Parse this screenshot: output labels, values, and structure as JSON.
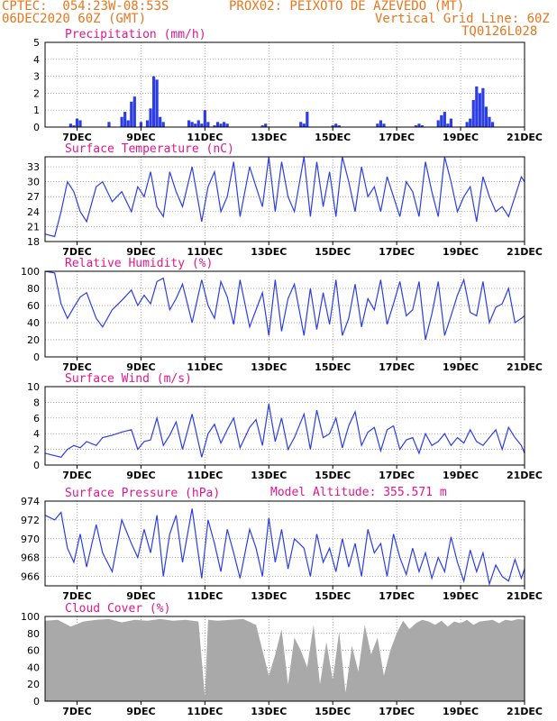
{
  "header": {
    "line1_left": "CPTEC:  054:23W-08:53S",
    "line1_right": "PROX02: PEIXOTO DE AZEVEDO (MT)",
    "line2_left": "06DEC2020 60Z (GMT)",
    "line2_right": "Vertical Grid Line: 60Z",
    "line3_right": "TQ0126L028"
  },
  "x_tick_labels": [
    "7DEC",
    "9DEC",
    "11DEC",
    "13DEC",
    "15DEC",
    "17DEC",
    "19DEC",
    "21DEC"
  ],
  "colors": {
    "line": "#2b3de6",
    "bar": "#2b3de6",
    "cloud": "#a9a9a9",
    "title": "#e0188c",
    "header": "#e8761c"
  },
  "model_altitude": "Model Altitude: 355.571 m",
  "chart_data": [
    {
      "type": "bar",
      "title": "Precipitation (mm/h)",
      "ylim": [
        0,
        5
      ],
      "yticks": [
        "0",
        "1",
        "2",
        "3",
        "4",
        "5"
      ],
      "x_unit": "days since 6DEC 12Z",
      "x": [
        0.8,
        0.9,
        1.0,
        1.1,
        2.0,
        2.4,
        2.5,
        2.6,
        2.7,
        2.8,
        3.0,
        3.2,
        3.3,
        3.4,
        3.5,
        3.6,
        3.7,
        4.5,
        4.6,
        4.7,
        4.8,
        4.9,
        5.0,
        5.1,
        5.3,
        5.4,
        5.5,
        5.6,
        5.7,
        6.8,
        6.9,
        8.0,
        8.1,
        8.2,
        9.0,
        9.1,
        9.2,
        10.4,
        10.5,
        10.6,
        11.6,
        11.7,
        11.8,
        12.3,
        12.4,
        12.5,
        12.6,
        12.7,
        13.2,
        13.3,
        13.4,
        13.5,
        13.6,
        13.7,
        13.8,
        13.9,
        14.0
      ],
      "values": [
        0.2,
        0.1,
        0.5,
        0.4,
        0.3,
        0.6,
        0.9,
        0.4,
        1.5,
        1.8,
        0.3,
        0.4,
        1.1,
        3.0,
        2.8,
        0.6,
        0.3,
        0.4,
        0.3,
        0.2,
        0.4,
        0.2,
        1.0,
        0.3,
        0.1,
        0.3,
        0.2,
        0.3,
        0.2,
        0.1,
        0.2,
        0.3,
        0.2,
        0.9,
        0.1,
        0.2,
        0.1,
        0.2,
        0.4,
        0.2,
        0.1,
        0.2,
        0.1,
        0.4,
        0.7,
        0.9,
        0.2,
        0.5,
        0.3,
        0.5,
        1.6,
        2.4,
        2.0,
        2.3,
        1.2,
        0.6,
        0.3
      ]
    },
    {
      "type": "line",
      "title": "Surface Temperature (nC)",
      "ylim": [
        18,
        35
      ],
      "yticks": [
        "18",
        "21",
        "24",
        "27",
        "30",
        "33"
      ],
      "x": [
        0,
        0.3,
        0.5,
        0.7,
        0.9,
        1.1,
        1.3,
        1.6,
        1.8,
        2.1,
        2.4,
        2.7,
        2.9,
        3.1,
        3.3,
        3.5,
        3.7,
        3.9,
        4.1,
        4.3,
        4.6,
        4.9,
        5.1,
        5.3,
        5.5,
        5.7,
        5.9,
        6.1,
        6.4,
        6.6,
        6.8,
        7.0,
        7.2,
        7.4,
        7.6,
        7.8,
        8.1,
        8.3,
        8.5,
        8.7,
        8.9,
        9.1,
        9.3,
        9.5,
        9.7,
        9.9,
        10.1,
        10.3,
        10.5,
        10.7,
        10.9,
        11.1,
        11.3,
        11.5,
        11.7,
        11.9,
        12.1,
        12.3,
        12.5,
        12.7,
        12.9,
        13.1,
        13.3,
        13.5,
        13.7,
        13.9,
        14.1,
        14.3,
        14.5,
        14.7,
        14.9,
        15.0
      ],
      "values": [
        19.5,
        19,
        24,
        30,
        28,
        24,
        22,
        29,
        30,
        26,
        28,
        24,
        29,
        27,
        32,
        25,
        23,
        32,
        28,
        25,
        33,
        22,
        29,
        32,
        24,
        27,
        34,
        23,
        33,
        29,
        25,
        35,
        24,
        34,
        27,
        24,
        35,
        23,
        34,
        25,
        32,
        23,
        35,
        30,
        24,
        33,
        27,
        29,
        24,
        31,
        27,
        23,
        30,
        28,
        23,
        34,
        28,
        23,
        35,
        30,
        24,
        27,
        29,
        22,
        31,
        27,
        24,
        25,
        23,
        27,
        31,
        30
      ]
    },
    {
      "type": "line",
      "title": "Relative Humidity (%)",
      "ylim": [
        0,
        100
      ],
      "yticks": [
        "0",
        "20",
        "40",
        "60",
        "80",
        "100"
      ],
      "x": [
        0,
        0.3,
        0.5,
        0.7,
        0.9,
        1.1,
        1.3,
        1.6,
        1.8,
        2.1,
        2.4,
        2.7,
        2.9,
        3.1,
        3.3,
        3.5,
        3.7,
        3.9,
        4.1,
        4.3,
        4.6,
        4.9,
        5.1,
        5.3,
        5.5,
        5.7,
        5.9,
        6.1,
        6.4,
        6.6,
        6.8,
        7.0,
        7.2,
        7.4,
        7.6,
        7.8,
        8.1,
        8.3,
        8.5,
        8.7,
        8.9,
        9.1,
        9.3,
        9.5,
        9.7,
        9.9,
        10.1,
        10.3,
        10.5,
        10.7,
        10.9,
        11.1,
        11.3,
        11.5,
        11.7,
        11.9,
        12.1,
        12.3,
        12.5,
        12.7,
        12.9,
        13.1,
        13.3,
        13.5,
        13.7,
        13.9,
        14.1,
        14.3,
        14.5,
        14.7,
        14.9,
        15.0
      ],
      "values": [
        100,
        98,
        62,
        45,
        58,
        70,
        75,
        45,
        35,
        55,
        66,
        78,
        60,
        72,
        62,
        88,
        92,
        55,
        68,
        85,
        40,
        90,
        60,
        45,
        88,
        70,
        38,
        90,
        35,
        55,
        75,
        25,
        90,
        30,
        68,
        85,
        25,
        80,
        32,
        75,
        38,
        90,
        25,
        45,
        85,
        35,
        68,
        55,
        90,
        38,
        62,
        88,
        48,
        55,
        88,
        20,
        50,
        88,
        25,
        48,
        72,
        90,
        52,
        48,
        88,
        40,
        58,
        62,
        80,
        40,
        45,
        48
      ]
    },
    {
      "type": "line",
      "title": "Surface Wind (m/s)",
      "ylim": [
        0,
        10
      ],
      "yticks": [
        "0",
        "2",
        "4",
        "6",
        "8",
        "10"
      ],
      "x": [
        0,
        0.3,
        0.5,
        0.7,
        0.9,
        1.1,
        1.3,
        1.6,
        1.8,
        2.1,
        2.4,
        2.7,
        2.9,
        3.1,
        3.3,
        3.5,
        3.7,
        3.9,
        4.1,
        4.3,
        4.6,
        4.9,
        5.1,
        5.3,
        5.5,
        5.7,
        5.9,
        6.1,
        6.4,
        6.6,
        6.8,
        7.0,
        7.2,
        7.4,
        7.6,
        7.8,
        8.1,
        8.3,
        8.5,
        8.7,
        8.9,
        9.1,
        9.3,
        9.5,
        9.7,
        9.9,
        10.1,
        10.3,
        10.5,
        10.7,
        10.9,
        11.1,
        11.3,
        11.5,
        11.7,
        11.9,
        12.1,
        12.3,
        12.5,
        12.7,
        12.9,
        13.1,
        13.3,
        13.5,
        13.7,
        13.9,
        14.1,
        14.3,
        14.5,
        14.7,
        14.9,
        15.0
      ],
      "values": [
        1.5,
        1.2,
        1.0,
        2.0,
        2.5,
        2.2,
        3.0,
        2.5,
        3.5,
        3.8,
        4.2,
        4.5,
        2.0,
        3.0,
        3.2,
        6.0,
        2.5,
        3.8,
        5.5,
        2.0,
        6.5,
        1.0,
        4.0,
        5.2,
        2.8,
        4.5,
        6.0,
        2.2,
        4.8,
        5.8,
        2.5,
        7.8,
        3.0,
        6.0,
        2.0,
        3.5,
        6.5,
        2.0,
        7.0,
        3.5,
        4.0,
        6.0,
        2.2,
        5.0,
        6.8,
        2.5,
        4.2,
        4.8,
        1.8,
        4.5,
        5.0,
        2.0,
        3.2,
        3.5,
        1.5,
        4.0,
        2.5,
        3.0,
        4.0,
        2.5,
        3.5,
        2.8,
        4.5,
        3.0,
        2.5,
        3.5,
        4.5,
        2.0,
        4.8,
        3.5,
        2.5,
        1.5
      ]
    },
    {
      "type": "line",
      "title": "Surface Pressure (hPa)",
      "ylim": [
        965,
        974
      ],
      "yticks": [
        "966",
        "968",
        "970",
        "972",
        "974"
      ],
      "x": [
        0,
        0.3,
        0.5,
        0.7,
        0.9,
        1.1,
        1.3,
        1.6,
        1.8,
        2.1,
        2.4,
        2.7,
        2.9,
        3.1,
        3.3,
        3.5,
        3.7,
        3.9,
        4.1,
        4.3,
        4.6,
        4.9,
        5.1,
        5.3,
        5.5,
        5.7,
        5.9,
        6.1,
        6.4,
        6.6,
        6.8,
        7.0,
        7.2,
        7.4,
        7.6,
        7.8,
        8.1,
        8.3,
        8.5,
        8.7,
        8.9,
        9.1,
        9.3,
        9.5,
        9.7,
        9.9,
        10.1,
        10.3,
        10.5,
        10.7,
        10.9,
        11.1,
        11.3,
        11.5,
        11.7,
        11.9,
        12.1,
        12.3,
        12.5,
        12.7,
        12.9,
        13.1,
        13.3,
        13.5,
        13.7,
        13.9,
        14.1,
        14.3,
        14.5,
        14.7,
        14.9,
        15.0
      ],
      "values": [
        972.5,
        972.0,
        972.8,
        969.0,
        967.5,
        970.5,
        967.0,
        971.5,
        968.5,
        966.5,
        972.0,
        969.5,
        968.0,
        971.0,
        968.5,
        972.5,
        966.0,
        970.5,
        972.5,
        967.5,
        973.2,
        965.8,
        972.0,
        969.5,
        966.5,
        971.0,
        968.5,
        965.8,
        971.0,
        969.0,
        966.0,
        972.2,
        967.5,
        971.0,
        966.8,
        970.0,
        969.0,
        966.0,
        970.5,
        967.5,
        969.0,
        966.5,
        970.0,
        967.0,
        969.5,
        966.0,
        971.0,
        968.5,
        969.5,
        966.0,
        970.5,
        968.0,
        966.2,
        969.0,
        966.5,
        968.5,
        965.8,
        968.0,
        966.5,
        970.2,
        967.5,
        965.5,
        968.8,
        966.5,
        968.5,
        965.2,
        967.2,
        966.0,
        965.5,
        967.8,
        965.8,
        966.8
      ]
    },
    {
      "type": "area",
      "title": "Cloud Cover (%)",
      "ylim": [
        0,
        100
      ],
      "yticks": [
        "0",
        "20",
        "40",
        "60",
        "80",
        "100"
      ],
      "x": [
        0,
        0.4,
        0.8,
        1.2,
        1.6,
        2.0,
        2.4,
        2.8,
        3.2,
        3.6,
        4.0,
        4.4,
        4.8,
        5.0,
        5.1,
        5.4,
        5.8,
        6.2,
        6.6,
        6.8,
        7.0,
        7.2,
        7.4,
        7.6,
        7.8,
        8.0,
        8.2,
        8.4,
        8.6,
        8.8,
        9.0,
        9.2,
        9.4,
        9.6,
        9.8,
        10.0,
        10.2,
        10.4,
        10.6,
        10.8,
        11.0,
        11.2,
        11.4,
        11.6,
        11.8,
        12.0,
        12.2,
        12.4,
        12.6,
        12.8,
        13.0,
        13.2,
        13.4,
        13.6,
        13.8,
        14.0,
        14.2,
        14.4,
        14.6,
        14.8,
        15.0
      ],
      "values": [
        95,
        96,
        88,
        94,
        96,
        97,
        93,
        96,
        95,
        97,
        95,
        96,
        94,
        5,
        96,
        95,
        96,
        97,
        90,
        60,
        30,
        55,
        85,
        20,
        75,
        60,
        40,
        90,
        20,
        70,
        25,
        82,
        10,
        65,
        35,
        90,
        55,
        75,
        30,
        60,
        80,
        95,
        85,
        92,
        96,
        94,
        90,
        95,
        88,
        94,
        92,
        96,
        90,
        94,
        95,
        96,
        92,
        96,
        95,
        97,
        96
      ]
    }
  ]
}
